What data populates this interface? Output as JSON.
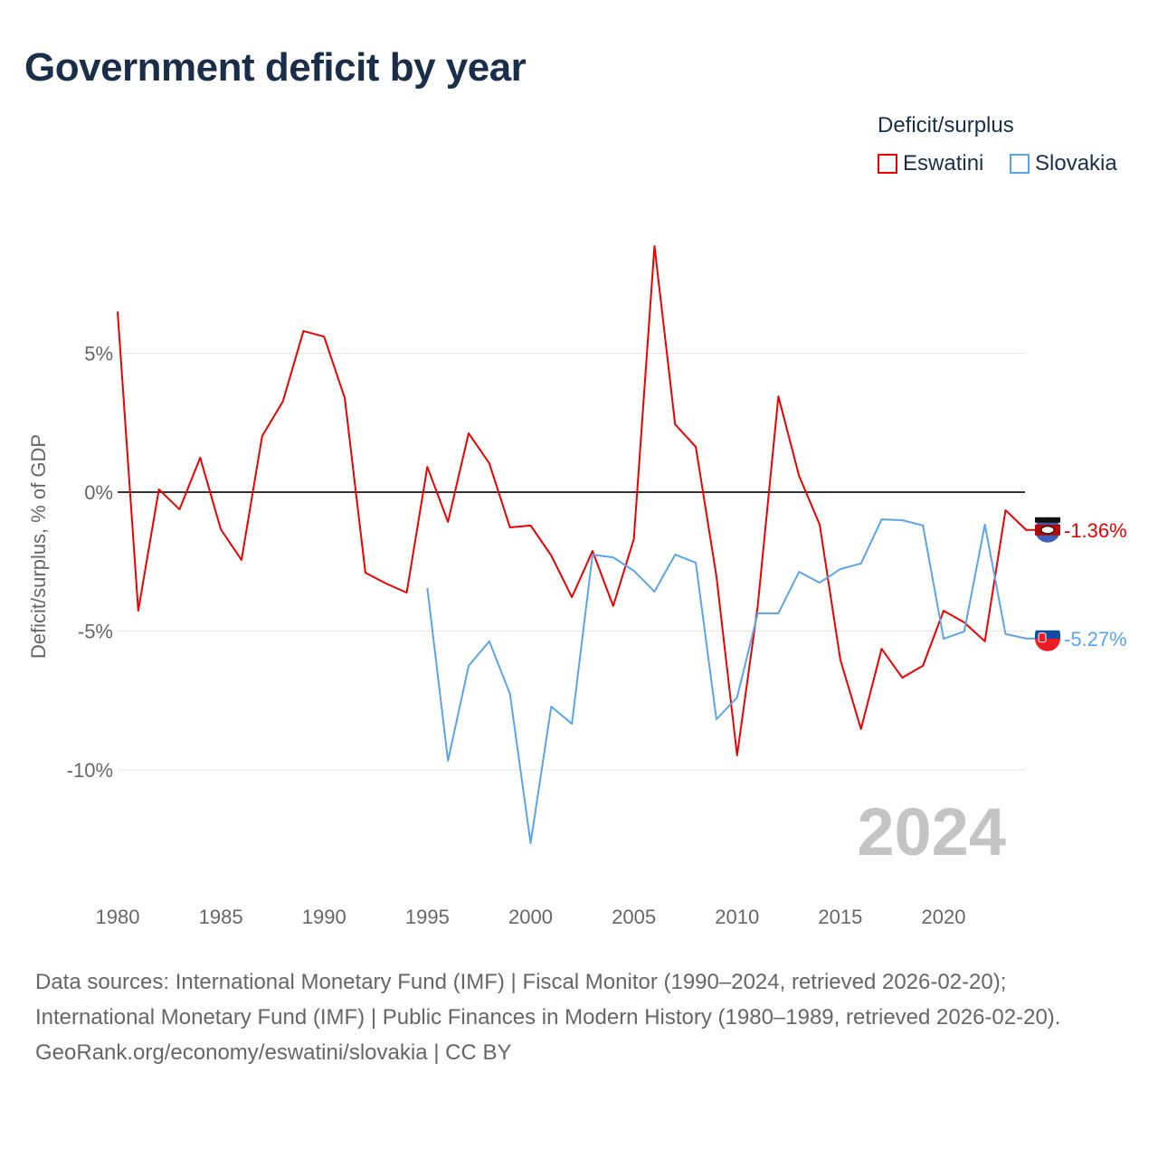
{
  "title": "Government deficit by year",
  "chart_data": {
    "type": "line",
    "title": "Government deficit by year",
    "xlabel": "",
    "ylabel": "Deficit/surplus, % of GDP",
    "legend_title": "Deficit/surplus",
    "legend_position": "top-right",
    "xlim": [
      1980,
      2024
    ],
    "ylim": [
      -13.5,
      10
    ],
    "x_ticks": [
      1980,
      1985,
      1990,
      1995,
      2000,
      2005,
      2010,
      2015,
      2020
    ],
    "y_ticks": [
      {
        "v": 5,
        "label": "5%"
      },
      {
        "v": 0,
        "label": "0%"
      },
      {
        "v": -5,
        "label": "-5%"
      },
      {
        "v": -10,
        "label": "-10%"
      }
    ],
    "year_watermark": "2024",
    "series": [
      {
        "name": "Eswatini",
        "color": "#ee0000",
        "end_label": "-1.36%",
        "start_year": 1980,
        "values": [
          6.5,
          -4.27,
          0.1,
          -0.62,
          1.24,
          -1.34,
          -2.44,
          2.02,
          3.26,
          5.8,
          5.6,
          3.39,
          -2.9,
          -3.29,
          -3.62,
          0.91,
          -1.07,
          2.12,
          1.04,
          -1.27,
          -1.2,
          -2.28,
          -3.78,
          -2.12,
          -4.1,
          -1.69,
          8.86,
          2.44,
          1.63,
          -3.03,
          -9.48,
          -4.1,
          3.45,
          0.59,
          -1.17,
          -6.03,
          -8.53,
          -5.64,
          -6.68,
          -6.25,
          -4.27,
          -4.69,
          -5.37,
          -0.65,
          -1.36
        ]
      },
      {
        "name": "Slovakia",
        "color": "#5ba4ea",
        "end_label": "-5.27%",
        "start_year": 1995,
        "values": [
          -3.45,
          -9.67,
          -6.25,
          -5.37,
          -7.26,
          -12.64,
          -7.72,
          -8.34,
          -2.25,
          -2.35,
          -2.83,
          -3.58,
          -2.25,
          -2.54,
          -8.18,
          -7.39,
          -4.36,
          -4.36,
          -2.87,
          -3.26,
          -2.77,
          -2.57,
          -0.98,
          -1.01,
          -1.2,
          -5.28,
          -5.02,
          -1.17,
          -5.11,
          -5.27
        ]
      }
    ]
  },
  "footer": {
    "sources": "Data sources: International Monetary Fund (IMF) | Fiscal Monitor (1990–2024, retrieved 2026-02-20); International Monetary Fund (IMF) | Public Finances in Modern History (1980–1989, retrieved 2026-02-20).",
    "credit": "GeoRank.org/economy/eswatini/slovakia | CC BY"
  }
}
